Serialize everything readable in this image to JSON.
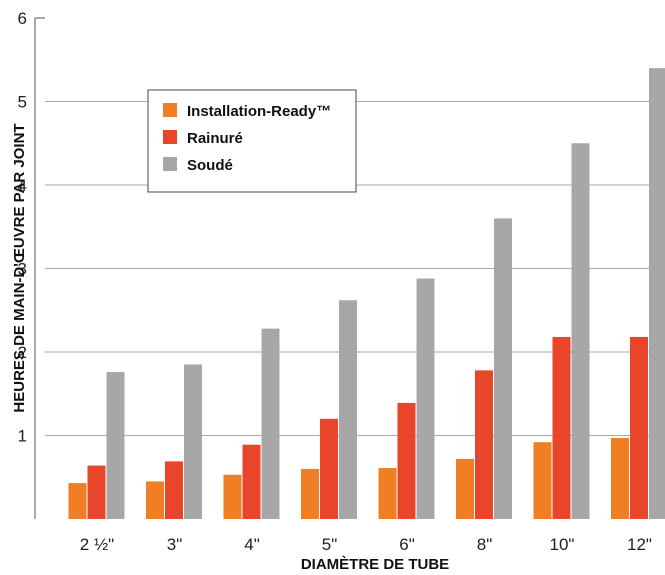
{
  "chart_data": {
    "type": "bar",
    "title": "",
    "xlabel": "DIAMÈTRE DE TUBE",
    "ylabel": "HEURES DE MAIN-D'ŒUVRE PAR JOINT",
    "ylim": [
      0,
      6
    ],
    "yticks": [
      "1",
      "2",
      "3",
      "4",
      "5",
      "6"
    ],
    "grid": true,
    "legend_position": "top-left",
    "categories": [
      "2 ½\"",
      "3\"",
      "4\"",
      "5\"",
      "6\"",
      "8\"",
      "10\"",
      "12\""
    ],
    "series": [
      {
        "name": "Installation-Ready™",
        "color": "#ef7f22",
        "values": [
          0.43,
          0.45,
          0.53,
          0.6,
          0.61,
          0.72,
          0.92,
          0.97
        ]
      },
      {
        "name": "Rainuré",
        "color": "#e8452a",
        "values": [
          0.64,
          0.69,
          0.89,
          1.2,
          1.39,
          1.78,
          2.18,
          2.18
        ]
      },
      {
        "name": "Soudé",
        "color": "#a7a7a7",
        "values": [
          1.76,
          1.85,
          2.28,
          2.62,
          2.88,
          3.6,
          4.5,
          5.4
        ]
      }
    ]
  }
}
